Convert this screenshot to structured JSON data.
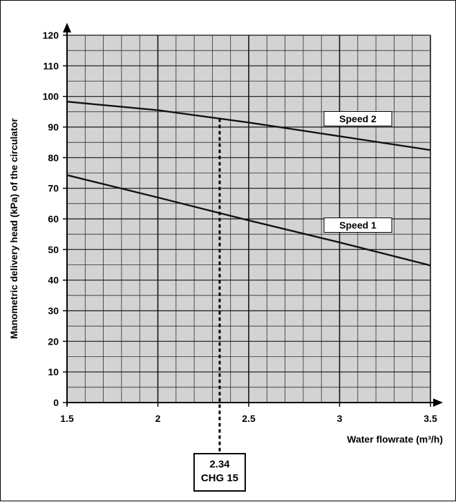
{
  "chart_data": {
    "type": "line",
    "xlabel": "Water flowrate (m³/h)",
    "ylabel": "Manometric delivery head (kPa) of the circulator",
    "xlim": [
      1.5,
      3.5
    ],
    "ylim": [
      0,
      120
    ],
    "x_ticks": [
      "1.5",
      "2",
      "2.5",
      "3",
      "3.5"
    ],
    "y_ticks": [
      "0",
      "10",
      "20",
      "30",
      "40",
      "50",
      "60",
      "70",
      "80",
      "90",
      "100",
      "110",
      "120"
    ],
    "grid": true,
    "series": [
      {
        "name": "Speed 2",
        "x": [
          1.5,
          2.0,
          2.5,
          3.0,
          3.5
        ],
        "y": [
          98.3,
          95.5,
          91.5,
          87.0,
          82.5
        ]
      },
      {
        "name": "Speed 1",
        "x": [
          1.5,
          2.0,
          2.5,
          3.0,
          3.5
        ],
        "y": [
          74.3,
          67.0,
          59.5,
          52.3,
          44.8
        ]
      }
    ],
    "annotations": [
      {
        "type": "vertical-dashed-line",
        "x": 2.34,
        "y_top": 92.8,
        "label_lines": [
          "2.34",
          "CHG 15"
        ]
      }
    ]
  }
}
